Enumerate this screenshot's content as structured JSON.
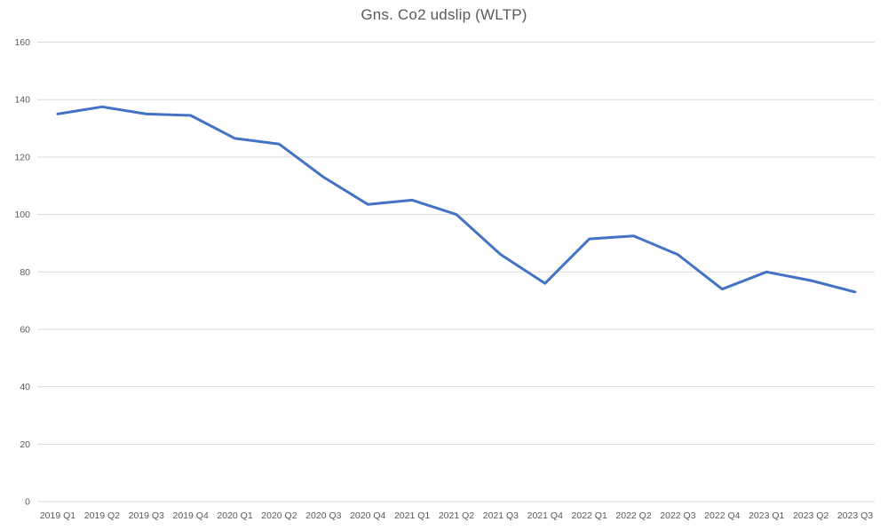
{
  "chart_data": {
    "type": "line",
    "title": "Gns. Co2 udslip (WLTP)",
    "categories": [
      "2019 Q1",
      "2019 Q2",
      "2019 Q3",
      "2019 Q4",
      "2020 Q1",
      "2020 Q2",
      "2020 Q3",
      "2020 Q4",
      "2021 Q1",
      "2021 Q2",
      "2021 Q3",
      "2021 Q4",
      "2022 Q1",
      "2022 Q2",
      "2022 Q3",
      "2022 Q4",
      "2023 Q1",
      "2023 Q2",
      "2023 Q3"
    ],
    "values": [
      135,
      137.5,
      135,
      134.5,
      126.5,
      124.5,
      113,
      103.5,
      105,
      100,
      86,
      76,
      91.5,
      92.5,
      86,
      74,
      80,
      77,
      73
    ],
    "xlabel": "",
    "ylabel": "",
    "ylim": [
      0,
      160
    ],
    "ytick_step": 20,
    "yticks": [
      0,
      20,
      40,
      60,
      80,
      100,
      120,
      140,
      160
    ],
    "grid": true,
    "legend": false,
    "marker": "none",
    "colors": {
      "line": "#4472C4",
      "gridline": "#D9D9D9",
      "axis_text": "#595959",
      "title_text": "#595959",
      "background": "#FFFFFF"
    }
  }
}
